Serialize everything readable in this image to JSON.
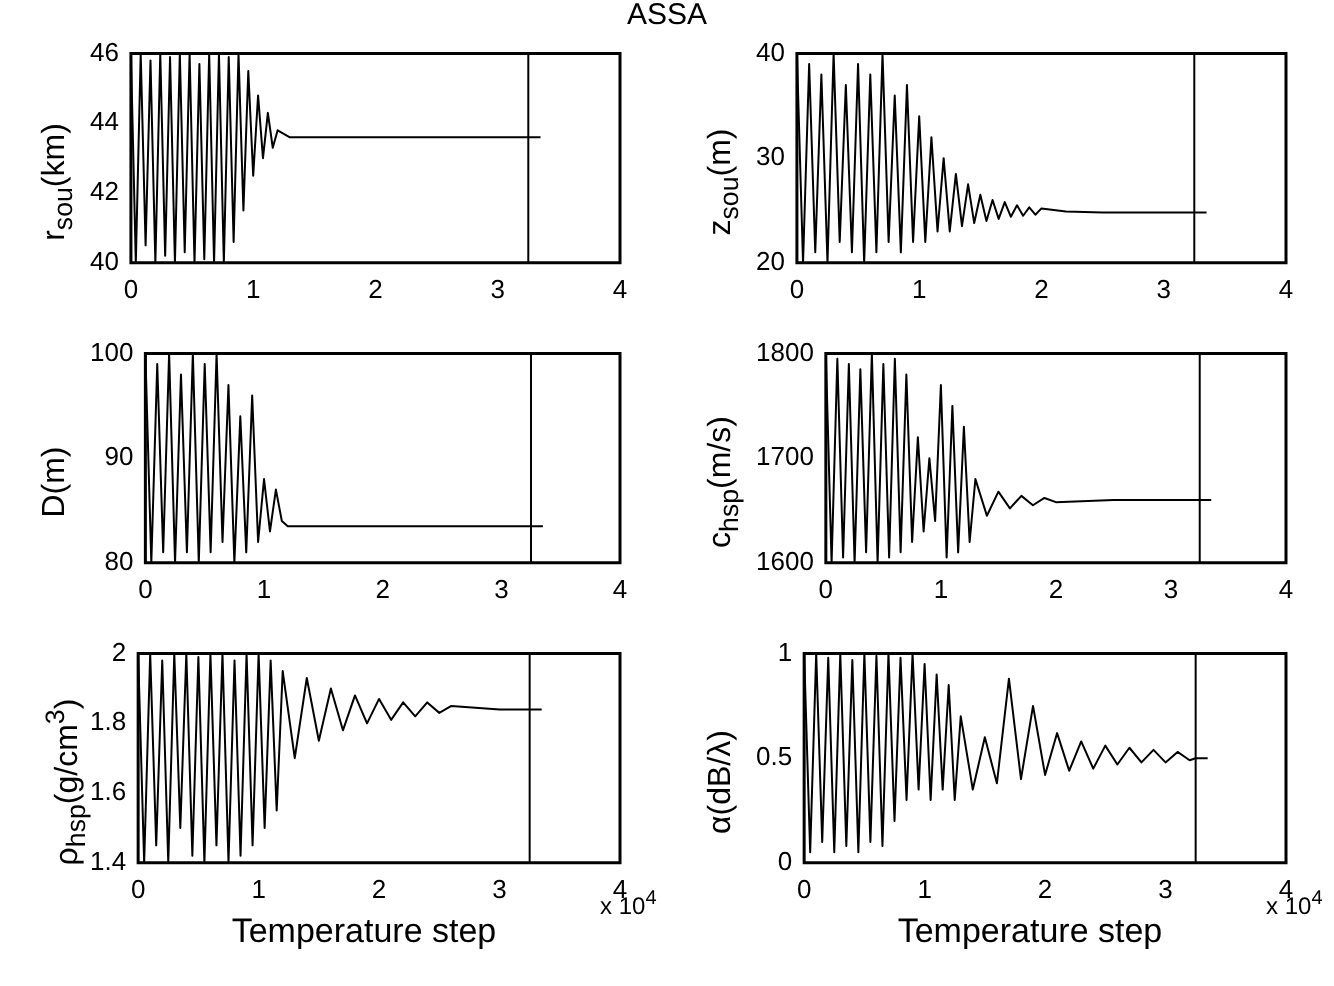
{
  "chart_data": [
    {
      "type": "line",
      "title": "ASSA",
      "ylabel": "r$_{sou}$(km)",
      "xlim": [
        0,
        4
      ],
      "xticks": [
        0,
        1,
        2,
        3,
        4
      ],
      "ylim": [
        40,
        46
      ],
      "yticks": [
        40,
        42,
        44,
        46
      ],
      "grid": false,
      "legend": false,
      "marker": "none",
      "line_style": "solid",
      "ref_lines": [
        {
          "axis": "x",
          "value": 3.25
        }
      ],
      "x": [
        0,
        0.04,
        0.08,
        0.12,
        0.16,
        0.2,
        0.24,
        0.28,
        0.32,
        0.36,
        0.4,
        0.44,
        0.48,
        0.52,
        0.56,
        0.6,
        0.64,
        0.68,
        0.72,
        0.76,
        0.8,
        0.84,
        0.88,
        0.92,
        0.96,
        1,
        1.04,
        1.08,
        1.12,
        1.16,
        1.2,
        1.3,
        1.6,
        2,
        2.5,
        3,
        3.35
      ],
      "series": [
        {
          "color": "#000000",
          "values": [
            46,
            40,
            46,
            40.5,
            45.8,
            40,
            46,
            40.2,
            45.9,
            40,
            46,
            40.3,
            46,
            40,
            45.7,
            40.1,
            46,
            40,
            46,
            40,
            45.9,
            40.6,
            46,
            41.5,
            45.5,
            42.5,
            44.8,
            43,
            44.3,
            43.3,
            43.8,
            43.6,
            43.6,
            43.6,
            43.6,
            43.6,
            43.6
          ]
        }
      ]
    },
    {
      "type": "line",
      "ylabel": "z$_{sou}$(m)",
      "xlim": [
        0,
        4
      ],
      "xticks": [
        0,
        1,
        2,
        3,
        4
      ],
      "ylim": [
        20,
        40
      ],
      "yticks": [
        20,
        30,
        40
      ],
      "grid": false,
      "legend": false,
      "marker": "none",
      "line_style": "solid",
      "ref_lines": [
        {
          "axis": "x",
          "value": 3.25
        }
      ],
      "x": [
        0,
        0.05,
        0.1,
        0.15,
        0.2,
        0.25,
        0.3,
        0.35,
        0.4,
        0.45,
        0.5,
        0.55,
        0.6,
        0.65,
        0.7,
        0.75,
        0.8,
        0.85,
        0.9,
        0.95,
        1,
        1.05,
        1.1,
        1.15,
        1.2,
        1.25,
        1.3,
        1.35,
        1.4,
        1.45,
        1.5,
        1.55,
        1.6,
        1.65,
        1.7,
        1.75,
        1.8,
        1.85,
        1.9,
        1.95,
        2,
        2.2,
        2.5,
        3,
        3.35
      ],
      "series": [
        {
          "color": "#000000",
          "values": [
            40,
            20,
            39,
            21,
            38,
            20,
            40,
            22,
            37,
            21,
            39,
            20,
            38,
            21,
            40,
            22,
            36,
            21,
            37,
            22,
            34,
            22,
            32,
            23,
            30,
            23,
            28.5,
            23.5,
            27.5,
            23.8,
            26.5,
            24,
            26,
            24.2,
            25.8,
            24.4,
            25.5,
            24.5,
            25.3,
            24.6,
            25.2,
            24.9,
            24.8,
            24.8,
            24.8
          ]
        }
      ]
    },
    {
      "type": "line",
      "ylabel": "D(m)",
      "xlim": [
        0,
        4
      ],
      "xticks": [
        0,
        1,
        2,
        3,
        4
      ],
      "ylim": [
        80,
        100
      ],
      "yticks": [
        80,
        90,
        100
      ],
      "grid": false,
      "legend": false,
      "marker": "none",
      "line_style": "solid",
      "ref_lines": [
        {
          "axis": "x",
          "value": 3.25
        }
      ],
      "x": [
        0,
        0.05,
        0.1,
        0.15,
        0.2,
        0.25,
        0.3,
        0.35,
        0.4,
        0.45,
        0.5,
        0.55,
        0.6,
        0.65,
        0.7,
        0.75,
        0.8,
        0.85,
        0.9,
        0.95,
        1,
        1.05,
        1.1,
        1.15,
        1.2,
        2,
        3,
        3.35
      ],
      "series": [
        {
          "color": "#000000",
          "values": [
            100,
            80,
            99,
            81,
            100,
            80,
            98,
            81,
            100,
            80,
            99,
            81,
            100,
            82,
            97,
            80,
            94,
            81,
            96,
            82,
            88,
            83,
            87,
            84,
            83.5,
            83.5,
            83.5,
            83.5
          ]
        }
      ]
    },
    {
      "type": "line",
      "ylabel": "c$_{hsp}$(m/s)",
      "xlim": [
        0,
        4
      ],
      "xticks": [
        0,
        1,
        2,
        3,
        4
      ],
      "ylim": [
        1600,
        1800
      ],
      "yticks": [
        1600,
        1700,
        1800
      ],
      "grid": false,
      "legend": false,
      "marker": "none",
      "line_style": "solid",
      "ref_lines": [
        {
          "axis": "x",
          "value": 3.25
        }
      ],
      "x": [
        0,
        0.05,
        0.1,
        0.15,
        0.2,
        0.25,
        0.3,
        0.35,
        0.4,
        0.45,
        0.5,
        0.55,
        0.6,
        0.65,
        0.7,
        0.75,
        0.8,
        0.85,
        0.9,
        0.95,
        1,
        1.05,
        1.1,
        1.15,
        1.2,
        1.25,
        1.3,
        1.4,
        1.5,
        1.6,
        1.7,
        1.8,
        1.9,
        2,
        2.5,
        3,
        3.35
      ],
      "series": [
        {
          "color": "#000000",
          "values": [
            1800,
            1600,
            1795,
            1605,
            1790,
            1600,
            1785,
            1610,
            1800,
            1600,
            1790,
            1605,
            1795,
            1610,
            1780,
            1620,
            1720,
            1630,
            1700,
            1640,
            1770,
            1605,
            1750,
            1610,
            1730,
            1620,
            1680,
            1645,
            1668,
            1652,
            1664,
            1655,
            1662,
            1658,
            1660,
            1660,
            1660
          ]
        }
      ]
    },
    {
      "type": "line",
      "ylabel": "ρ$_{hsp}$(g/cm$^{3}$)",
      "xlabel": "Temperature step",
      "annotations": [
        "x 10$^{4}$"
      ],
      "xlim": [
        0,
        4
      ],
      "xticks": [
        0,
        1,
        2,
        3,
        4
      ],
      "ylim": [
        1.4,
        2
      ],
      "yticks": [
        1.4,
        1.6,
        1.8,
        2
      ],
      "grid": false,
      "legend": false,
      "marker": "none",
      "line_style": "solid",
      "ref_lines": [
        {
          "axis": "x",
          "value": 3.25
        }
      ],
      "x": [
        0,
        0.05,
        0.1,
        0.15,
        0.2,
        0.25,
        0.3,
        0.35,
        0.4,
        0.45,
        0.5,
        0.55,
        0.6,
        0.65,
        0.7,
        0.75,
        0.8,
        0.85,
        0.9,
        0.95,
        1,
        1.05,
        1.1,
        1.15,
        1.2,
        1.3,
        1.4,
        1.5,
        1.6,
        1.7,
        1.8,
        1.9,
        2,
        2.1,
        2.2,
        2.3,
        2.4,
        2.5,
        2.6,
        3,
        3.35
      ],
      "series": [
        {
          "color": "#000000",
          "values": [
            2,
            1.4,
            2,
            1.45,
            1.98,
            1.4,
            2,
            1.5,
            2,
            1.42,
            1.99,
            1.4,
            2,
            1.45,
            2,
            1.4,
            1.98,
            1.42,
            2,
            1.45,
            2,
            1.5,
            1.98,
            1.55,
            1.95,
            1.7,
            1.93,
            1.75,
            1.9,
            1.78,
            1.88,
            1.8,
            1.87,
            1.81,
            1.86,
            1.82,
            1.86,
            1.83,
            1.85,
            1.84,
            1.84
          ]
        }
      ]
    },
    {
      "type": "line",
      "ylabel": "α(dB/λ)",
      "xlabel": "Temperature step",
      "annotations": [
        "x 10$^{4}$"
      ],
      "xlim": [
        0,
        4
      ],
      "xticks": [
        0,
        1,
        2,
        3,
        4
      ],
      "ylim": [
        0,
        1
      ],
      "yticks": [
        0,
        0.5,
        1
      ],
      "grid": false,
      "legend": false,
      "marker": "none",
      "line_style": "solid",
      "ref_lines": [
        {
          "axis": "x",
          "value": 3.25
        }
      ],
      "x": [
        0,
        0.05,
        0.1,
        0.15,
        0.2,
        0.25,
        0.3,
        0.35,
        0.4,
        0.45,
        0.5,
        0.55,
        0.6,
        0.65,
        0.7,
        0.75,
        0.8,
        0.85,
        0.9,
        0.95,
        1,
        1.05,
        1.1,
        1.15,
        1.2,
        1.25,
        1.3,
        1.4,
        1.5,
        1.6,
        1.7,
        1.8,
        1.9,
        2,
        2.1,
        2.2,
        2.3,
        2.4,
        2.5,
        2.6,
        2.7,
        2.8,
        2.9,
        3,
        3.1,
        3.2,
        3.25,
        3.35
      ],
      "series": [
        {
          "color": "#000000",
          "values": [
            1,
            0.05,
            1,
            0.1,
            0.98,
            0.05,
            1,
            0.08,
            0.97,
            0.05,
            1,
            0.1,
            0.99,
            0.08,
            1,
            0.2,
            0.98,
            0.3,
            1,
            0.35,
            0.95,
            0.3,
            0.9,
            0.35,
            0.85,
            0.3,
            0.7,
            0.35,
            0.6,
            0.38,
            0.88,
            0.4,
            0.75,
            0.42,
            0.62,
            0.44,
            0.58,
            0.45,
            0.56,
            0.47,
            0.55,
            0.48,
            0.54,
            0.48,
            0.53,
            0.49,
            0.5,
            0.5
          ]
        }
      ]
    }
  ]
}
